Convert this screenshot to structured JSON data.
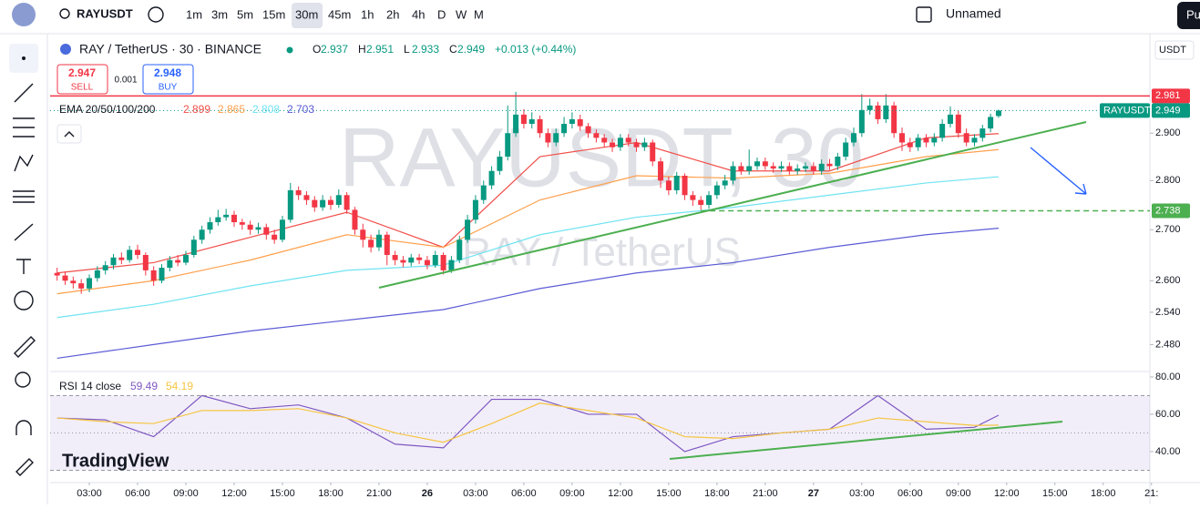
{
  "toolbar": {
    "symbol": "RAYUSDT",
    "intervals": [
      "1m",
      "3m",
      "5m",
      "15m",
      "30m",
      "45m",
      "1h",
      "2h",
      "4h",
      "D",
      "W",
      "M"
    ],
    "active_interval": 4,
    "layout_name": "Unnamed",
    "publish": "Pu"
  },
  "price_axis_currency": "USDT",
  "watermark": {
    "symbol": "RAYUSDT, 30",
    "name": "RAY / TetherUS"
  },
  "logo": "TradingView",
  "legend": {
    "title": "RAY / TetherUS · 30 · BINANCE",
    "ohlc_labels": [
      "O",
      "H",
      "L",
      "C"
    ],
    "change": "+0.013 (+0.44%)",
    "ema_title": "EMA 20/50/100/200",
    "rsi_title": "RSI 14 close"
  },
  "trade": {
    "sell_price": "2.947",
    "sell": "SELL",
    "spread": "0.001",
    "buy_price": "2.948",
    "buy": "BUY"
  },
  "chart_data": [
    {
      "type": "candlestick",
      "log_scale": true,
      "xlim": [
        -0.87,
        135.8
      ],
      "ylim": [
        2.431,
        3.111
      ],
      "up_color": "#089981",
      "down_color": "#f23645",
      "yticks": [
        {
          "value": 2.9,
          "label": "2.900"
        },
        {
          "value": 2.8,
          "label": "2.800"
        },
        {
          "value": 2.7,
          "label": "2.700"
        },
        {
          "value": 2.6,
          "label": "2.600"
        },
        {
          "value": 2.54,
          "label": "2.540"
        },
        {
          "value": 2.48,
          "label": "2.480"
        }
      ],
      "xticks": [
        {
          "value": 4,
          "label": "03:00"
        },
        {
          "value": 10,
          "label": "06:00"
        },
        {
          "value": 16,
          "label": "09:00"
        },
        {
          "value": 22,
          "label": "12:00"
        },
        {
          "value": 28,
          "label": "15:00"
        },
        {
          "value": 34,
          "label": "18:00"
        },
        {
          "value": 40,
          "label": "21:00"
        },
        {
          "value": 46,
          "label": "26"
        },
        {
          "value": 52,
          "label": "03:00"
        },
        {
          "value": 58,
          "label": "06:00"
        },
        {
          "value": 64,
          "label": "09:00"
        },
        {
          "value": 70,
          "label": "12:00"
        },
        {
          "value": 76,
          "label": "15:00"
        },
        {
          "value": 82,
          "label": "18:00"
        },
        {
          "value": 88,
          "label": "21:00"
        },
        {
          "value": 94,
          "label": "27"
        },
        {
          "value": 100,
          "label": "03:00"
        },
        {
          "value": 106,
          "label": "06:00"
        },
        {
          "value": 112,
          "label": "09:00"
        },
        {
          "value": 118,
          "label": "12:00"
        },
        {
          "value": 124,
          "label": "15:00"
        },
        {
          "value": 130,
          "label": "18:00"
        },
        {
          "value": 136,
          "label": "21:"
        }
      ],
      "open": [
        2.615,
        2.61,
        2.6,
        2.595,
        2.585,
        2.605,
        2.62,
        2.63,
        2.645,
        2.64,
        2.66,
        2.65,
        2.62,
        2.6,
        2.625,
        2.64,
        2.635,
        2.65,
        2.68,
        2.7,
        2.715,
        2.725,
        2.73,
        2.715,
        2.71,
        2.7,
        2.705,
        2.69,
        2.68,
        2.72,
        2.78,
        2.77,
        2.76,
        2.745,
        2.76,
        2.75,
        2.77,
        2.74,
        2.7,
        2.68,
        2.665,
        2.69,
        2.65,
        2.64,
        2.635,
        2.645,
        2.64,
        2.63,
        2.65,
        2.62,
        2.64,
        2.68,
        2.72,
        2.76,
        2.79,
        2.82,
        2.85,
        2.9,
        2.94,
        2.92,
        2.93,
        2.9,
        2.88,
        2.9,
        2.92,
        2.93,
        2.915,
        2.9,
        2.89,
        2.88,
        2.87,
        2.89,
        2.88,
        2.87,
        2.88,
        2.84,
        2.8,
        2.78,
        2.81,
        2.77,
        2.76,
        2.75,
        2.77,
        2.79,
        2.8,
        2.83,
        2.82,
        2.83,
        2.84,
        2.83,
        2.825,
        2.83,
        2.82,
        2.825,
        2.83,
        2.82,
        2.835,
        2.83,
        2.85,
        2.88,
        2.9,
        2.95,
        2.96,
        2.93,
        2.96,
        2.9,
        2.88,
        2.87,
        2.89,
        2.88,
        2.89,
        2.92,
        2.94,
        2.9,
        2.88,
        2.89,
        2.91,
        2.937
      ],
      "high": [
        2.625,
        2.618,
        2.608,
        2.603,
        2.612,
        2.628,
        2.638,
        2.652,
        2.655,
        2.668,
        2.67,
        2.655,
        2.628,
        2.632,
        2.648,
        2.65,
        2.658,
        2.688,
        2.708,
        2.725,
        2.74,
        2.742,
        2.738,
        2.722,
        2.718,
        2.714,
        2.712,
        2.7,
        2.728,
        2.795,
        2.788,
        2.778,
        2.768,
        2.77,
        2.768,
        2.782,
        2.776,
        2.746,
        2.712,
        2.69,
        2.7,
        2.696,
        2.658,
        2.648,
        2.652,
        2.652,
        2.648,
        2.658,
        2.655,
        2.648,
        2.688,
        2.73,
        2.77,
        2.8,
        2.83,
        2.862,
        2.96,
        2.99,
        2.952,
        2.945,
        2.938,
        2.91,
        2.91,
        2.935,
        2.945,
        2.94,
        2.922,
        2.908,
        2.898,
        2.888,
        2.898,
        2.898,
        2.888,
        2.89,
        2.886,
        2.848,
        2.808,
        2.818,
        2.815,
        2.778,
        2.768,
        2.778,
        2.798,
        2.812,
        2.84,
        2.838,
        2.865,
        2.848,
        2.848,
        2.838,
        2.84,
        2.838,
        2.834,
        2.838,
        2.838,
        2.844,
        2.845,
        2.858,
        2.89,
        2.912,
        2.985,
        2.975,
        2.968,
        2.985,
        2.968,
        2.912,
        2.89,
        2.898,
        2.898,
        2.9,
        2.93,
        2.958,
        2.948,
        2.91,
        2.898,
        2.918,
        2.942,
        2.951
      ],
      "low": [
        2.6,
        2.592,
        2.585,
        2.575,
        2.578,
        2.598,
        2.612,
        2.622,
        2.632,
        2.635,
        2.642,
        2.61,
        2.59,
        2.595,
        2.618,
        2.628,
        2.63,
        2.645,
        2.672,
        2.692,
        2.708,
        2.718,
        2.706,
        2.7,
        2.69,
        2.692,
        2.68,
        2.672,
        2.675,
        2.714,
        2.76,
        2.75,
        2.736,
        2.738,
        2.74,
        2.744,
        2.732,
        2.69,
        2.665,
        2.655,
        2.658,
        2.63,
        2.63,
        2.626,
        2.628,
        2.632,
        2.622,
        2.625,
        2.612,
        2.615,
        2.634,
        2.674,
        2.712,
        2.752,
        2.782,
        2.812,
        2.842,
        2.892,
        2.91,
        2.91,
        2.89,
        2.87,
        2.872,
        2.892,
        2.91,
        2.905,
        2.89,
        2.88,
        2.87,
        2.86,
        2.862,
        2.872,
        2.86,
        2.862,
        2.83,
        2.785,
        2.77,
        2.772,
        2.76,
        2.748,
        2.74,
        2.742,
        2.762,
        2.782,
        2.792,
        2.812,
        2.812,
        2.822,
        2.822,
        2.816,
        2.818,
        2.812,
        2.812,
        2.818,
        2.812,
        2.812,
        2.822,
        2.822,
        2.842,
        2.872,
        2.892,
        2.94,
        2.92,
        2.922,
        2.89,
        2.862,
        2.86,
        2.862,
        2.87,
        2.872,
        2.882,
        2.912,
        2.89,
        2.872,
        2.872,
        2.882,
        2.902,
        2.933
      ],
      "close": [
        2.61,
        2.6,
        2.595,
        2.585,
        2.605,
        2.62,
        2.63,
        2.645,
        2.64,
        2.66,
        2.65,
        2.62,
        2.6,
        2.625,
        2.64,
        2.635,
        2.65,
        2.68,
        2.7,
        2.715,
        2.725,
        2.73,
        2.715,
        2.71,
        2.7,
        2.705,
        2.69,
        2.68,
        2.72,
        2.78,
        2.77,
        2.76,
        2.745,
        2.76,
        2.75,
        2.77,
        2.74,
        2.7,
        2.68,
        2.665,
        2.69,
        2.65,
        2.64,
        2.635,
        2.645,
        2.64,
        2.63,
        2.65,
        2.62,
        2.64,
        2.68,
        2.72,
        2.76,
        2.79,
        2.82,
        2.85,
        2.9,
        2.94,
        2.92,
        2.93,
        2.9,
        2.88,
        2.9,
        2.92,
        2.93,
        2.915,
        2.9,
        2.89,
        2.88,
        2.87,
        2.89,
        2.88,
        2.87,
        2.88,
        2.84,
        2.8,
        2.78,
        2.81,
        2.77,
        2.76,
        2.75,
        2.77,
        2.79,
        2.8,
        2.83,
        2.82,
        2.83,
        2.84,
        2.83,
        2.825,
        2.83,
        2.82,
        2.825,
        2.83,
        2.82,
        2.835,
        2.83,
        2.85,
        2.88,
        2.9,
        2.95,
        2.96,
        2.93,
        2.96,
        2.9,
        2.88,
        2.87,
        2.89,
        2.88,
        2.89,
        2.92,
        2.94,
        2.9,
        2.88,
        2.89,
        2.91,
        2.935,
        2.949
      ],
      "lines": [
        {
          "color": "#f0504a",
          "x": [
            0,
            12,
            24,
            36,
            48,
            60,
            72,
            84,
            96,
            108,
            117
          ],
          "values": [
            2.615,
            2.635,
            2.685,
            2.735,
            2.665,
            2.85,
            2.88,
            2.82,
            2.82,
            2.89,
            2.899
          ]
        },
        {
          "color": "#ffa04d",
          "x": [
            0,
            12,
            24,
            36,
            48,
            60,
            72,
            84,
            96,
            108,
            117
          ],
          "values": [
            2.575,
            2.6,
            2.64,
            2.69,
            2.665,
            2.76,
            2.81,
            2.805,
            2.815,
            2.85,
            2.865
          ]
        },
        {
          "color": "#6fe3f2",
          "x": [
            0,
            12,
            24,
            36,
            48,
            60,
            72,
            84,
            96,
            108,
            117
          ],
          "values": [
            2.53,
            2.555,
            2.59,
            2.62,
            2.63,
            2.69,
            2.725,
            2.745,
            2.77,
            2.795,
            2.808
          ]
        },
        {
          "color": "#5b5bd6",
          "x": [
            0,
            12,
            24,
            36,
            48,
            60,
            72,
            84,
            96,
            108,
            117
          ],
          "values": [
            2.455,
            2.48,
            2.505,
            2.525,
            2.545,
            2.585,
            2.615,
            2.635,
            2.665,
            2.69,
            2.703
          ]
        }
      ],
      "levels": [
        {
          "value": 2.981,
          "color": "#f23645",
          "dashed": false
        },
        {
          "value": 2.738,
          "color": "#4caf50",
          "dashed": true
        }
      ]
    },
    {
      "type": "line",
      "xlim": [
        -0.87,
        135.8
      ],
      "ylim": [
        23.4,
        82.9
      ],
      "yticks": [
        {
          "value": 80,
          "label": "80.00"
        },
        {
          "value": 60,
          "label": "60.00"
        },
        {
          "value": 40,
          "label": "40.00"
        }
      ],
      "bands": [
        30,
        50,
        70
      ],
      "series": [
        {
          "color": "#7e57c2",
          "x": [
            0,
            6,
            12,
            18,
            24,
            30,
            36,
            42,
            48,
            54,
            60,
            66,
            72,
            78,
            84,
            90,
            96,
            102,
            108,
            114,
            117
          ],
          "values": [
            58,
            57,
            48,
            70,
            63,
            65,
            58,
            44,
            42,
            68,
            68,
            60,
            60,
            40,
            48,
            50,
            52,
            70,
            52,
            53,
            59.49
          ]
        },
        {
          "color": "#f5c542",
          "x": [
            0,
            6,
            12,
            18,
            24,
            30,
            36,
            42,
            48,
            54,
            60,
            66,
            72,
            78,
            84,
            90,
            96,
            102,
            108,
            114,
            117
          ],
          "values": [
            58,
            56,
            55,
            62,
            62,
            63,
            58,
            50,
            45,
            55,
            66,
            62,
            58,
            48,
            47,
            50,
            52,
            58,
            56,
            54,
            54.19
          ]
        }
      ]
    }
  ]
}
